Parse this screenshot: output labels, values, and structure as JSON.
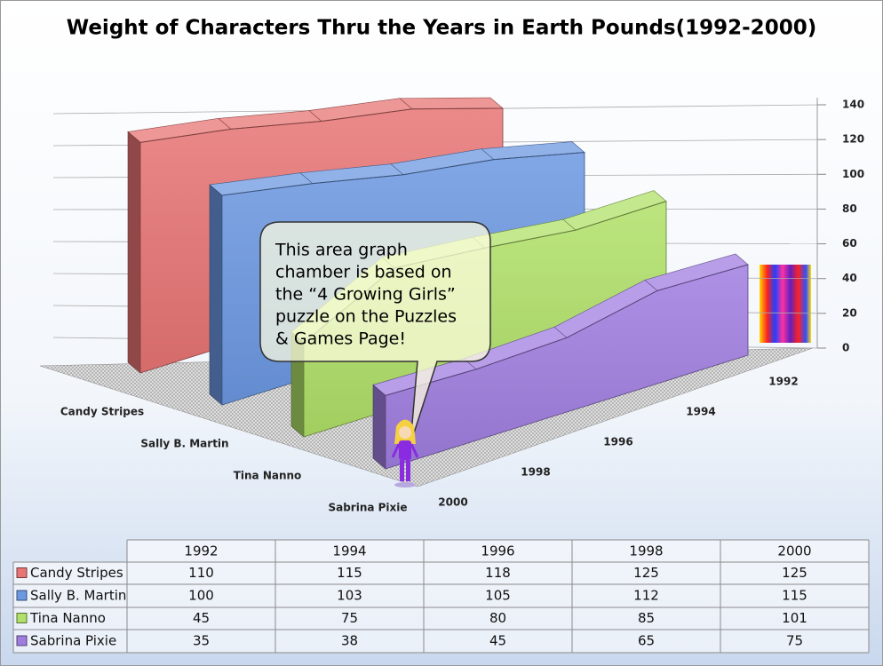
{
  "chart_data": {
    "type": "area3d",
    "title": "Weight of Characters Thru the Years in Earth Pounds(1992-2000)",
    "categories": [
      "1992",
      "1994",
      "1996",
      "1998",
      "2000"
    ],
    "series": [
      {
        "name": "Candy Stripes",
        "color": "#e87474",
        "values": [
          110,
          115,
          118,
          125,
          125
        ]
      },
      {
        "name": "Sally B. Martin",
        "color": "#6c98e2",
        "values": [
          100,
          103,
          105,
          112,
          115
        ]
      },
      {
        "name": "Tina Nanno",
        "color": "#b0e068",
        "values": [
          45,
          75,
          80,
          85,
          101
        ]
      },
      {
        "name": "Sabrina Pixie",
        "color": "#a07ee0",
        "values": [
          35,
          38,
          45,
          65,
          75
        ]
      }
    ],
    "ylim": [
      0,
      140
    ],
    "yticks": [
      0,
      20,
      40,
      60,
      80,
      100,
      120,
      140
    ],
    "grid": true,
    "annotation": [
      "This area graph",
      "chamber is based on",
      "the “4 Growing Girls”",
      "puzzle on the Puzzles",
      "& Games Page!"
    ]
  }
}
